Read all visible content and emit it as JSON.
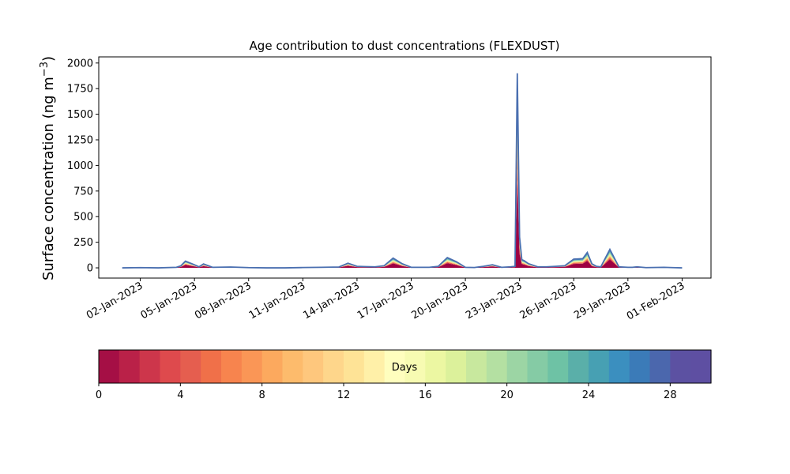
{
  "chart_data": {
    "type": "area",
    "title": "Age contribution to dust concentrations (FLEXDUST)",
    "ylabel": "Surface concentration (ng m",
    "ylabel_superscript": "−3",
    "ylabel_close": ")",
    "xlabel": "",
    "ylim": [
      -100,
      2060
    ],
    "xlim_days": [
      -1.3,
      32.6
    ],
    "yticks": [
      0,
      250,
      500,
      750,
      1000,
      1250,
      1500,
      1750,
      2000
    ],
    "xtick_labels": [
      "02-Jan-2023",
      "05-Jan-2023",
      "08-Jan-2023",
      "11-Jan-2023",
      "14-Jan-2023",
      "17-Jan-2023",
      "20-Jan-2023",
      "23-Jan-2023",
      "26-Jan-2023",
      "29-Jan-2023",
      "01-Feb-2023"
    ],
    "x": [
      "2023-01-01T00",
      "2023-01-02T00",
      "2023-01-03T00",
      "2023-01-04T00",
      "2023-01-04T06",
      "2023-01-04T12",
      "2023-01-05T00",
      "2023-01-05T06",
      "2023-01-05T12",
      "2023-01-06T00",
      "2023-01-07T00",
      "2023-01-08T00",
      "2023-01-09T00",
      "2023-01-10T00",
      "2023-01-11T00",
      "2023-01-12T00",
      "2023-01-13T00",
      "2023-01-13T12",
      "2023-01-14T00",
      "2023-01-14T12",
      "2023-01-15T00",
      "2023-01-15T12",
      "2023-01-16T00",
      "2023-01-16T12",
      "2023-01-17T00",
      "2023-01-18T00",
      "2023-01-18T12",
      "2023-01-19T00",
      "2023-01-19T12",
      "2023-01-20T00",
      "2023-01-20T12",
      "2023-01-21T00",
      "2023-01-21T12",
      "2023-01-22T00",
      "2023-01-22T12",
      "2023-01-22T18",
      "2023-01-22T21",
      "2023-01-23T00",
      "2023-01-23T03",
      "2023-01-23T06",
      "2023-01-23T12",
      "2023-01-24T00",
      "2023-01-24T12",
      "2023-01-25T00",
      "2023-01-25T12",
      "2023-01-26T00",
      "2023-01-26T12",
      "2023-01-26T18",
      "2023-01-27T00",
      "2023-01-27T06",
      "2023-01-27T12",
      "2023-01-28T00",
      "2023-01-28T12",
      "2023-01-29T00",
      "2023-01-29T06",
      "2023-01-29T12",
      "2023-01-30T00",
      "2023-01-31T00",
      "2023-01-31T12",
      "2023-02-01T00"
    ],
    "total": [
      0,
      2,
      0,
      5,
      20,
      65,
      30,
      10,
      38,
      5,
      8,
      2,
      0,
      0,
      3,
      5,
      8,
      45,
      15,
      12,
      10,
      20,
      95,
      40,
      5,
      5,
      15,
      100,
      60,
      5,
      3,
      15,
      30,
      5,
      10,
      15,
      1900,
      300,
      80,
      70,
      40,
      10,
      10,
      15,
      20,
      85,
      90,
      150,
      40,
      15,
      10,
      180,
      10,
      5,
      5,
      10,
      2,
      5,
      2,
      0
    ],
    "age0_fraction": 0.45,
    "series_colors": [
      "#9e0142",
      "#d53e4f",
      "#f46d43",
      "#fdae61",
      "#fee08b",
      "#e6f598",
      "#abdda4",
      "#66c2a5",
      "#3288bd",
      "#5e4fa2"
    ],
    "colorbar": {
      "label": "Days",
      "min": 0,
      "max": 30,
      "ticks": [
        0,
        4,
        8,
        12,
        16,
        20,
        24,
        28
      ],
      "colors": [
        "#a50f45",
        "#ba2148",
        "#cd364b",
        "#de4a4d",
        "#e55e4f",
        "#f07049",
        "#f7844e",
        "#fa9656",
        "#fca95e",
        "#fdbb6c",
        "#fec77d",
        "#fed68b",
        "#fee396",
        "#fff0a8",
        "#fffebe",
        "#f7fbb2",
        "#ecf7a2",
        "#dcf19b",
        "#c8e89e",
        "#b4e0a2",
        "#9cd5a4",
        "#85cba5",
        "#6ec2a5",
        "#5aafa9",
        "#47a0b3",
        "#3b8fbf",
        "#3b7bb8",
        "#4b67ad",
        "#5c51a2",
        "#5e4fa2"
      ]
    }
  }
}
